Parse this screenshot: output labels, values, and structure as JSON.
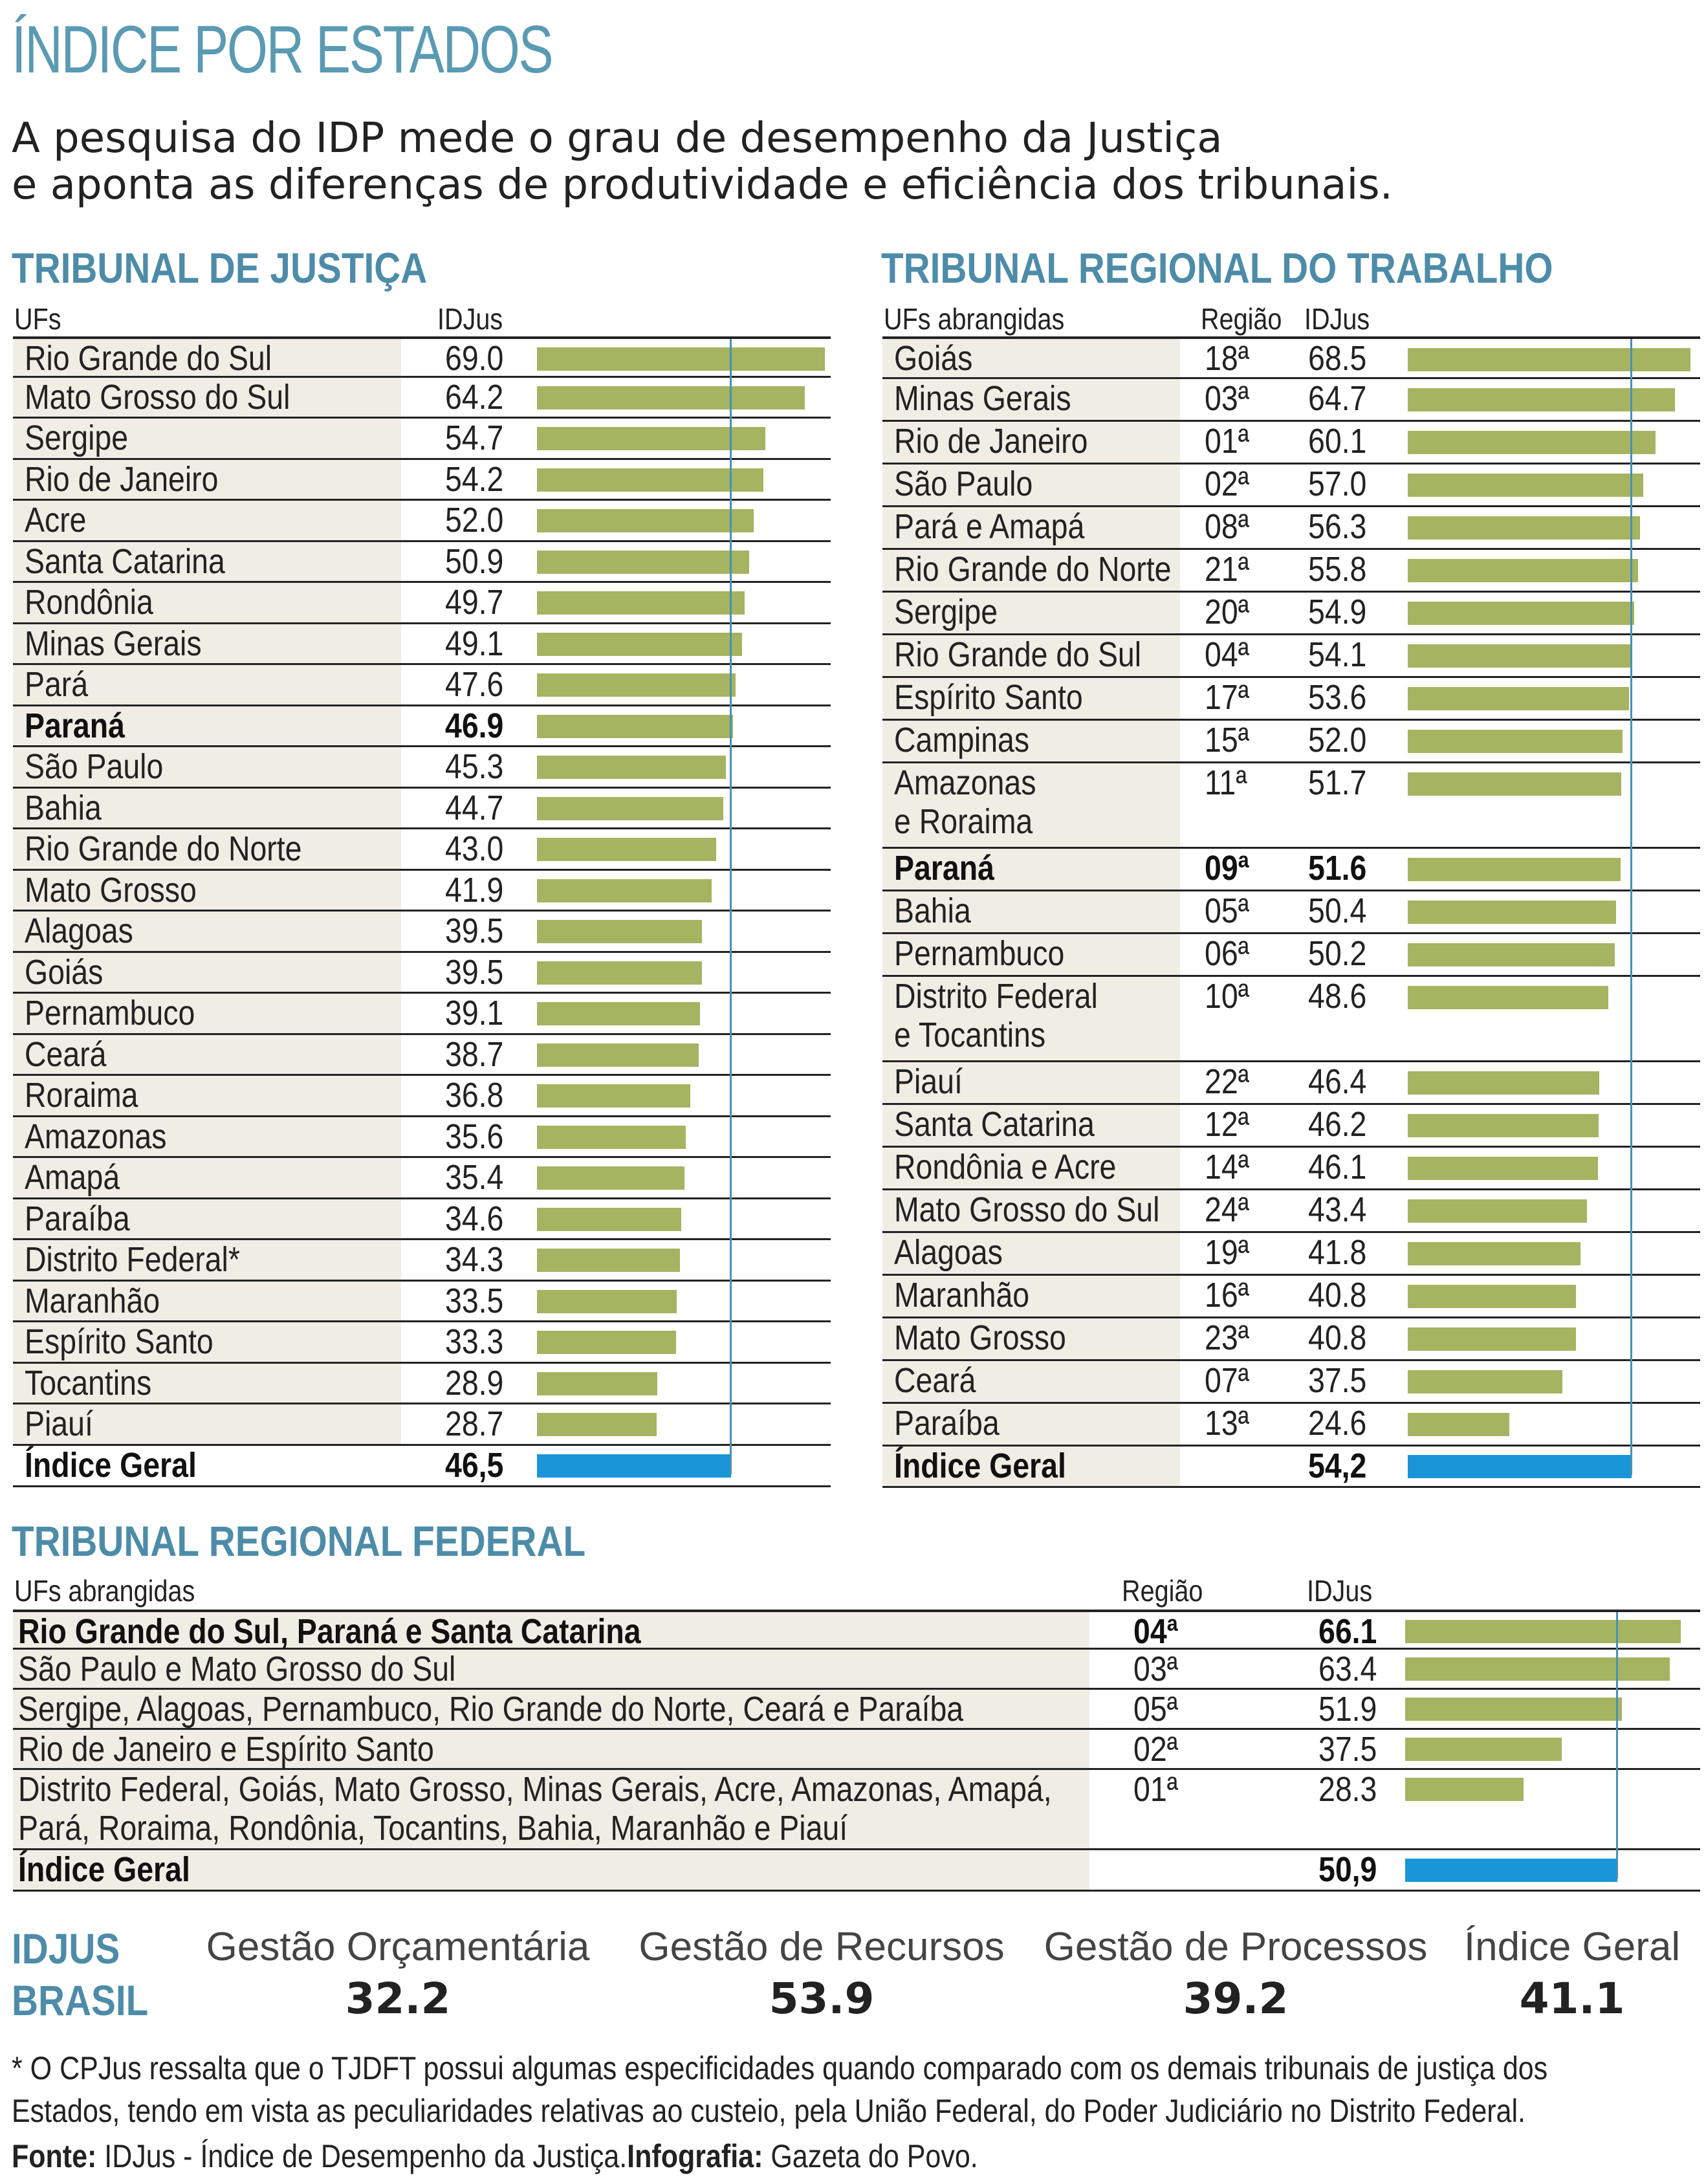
{
  "title": "ÍNDICE POR ESTADOS",
  "intro": [
    "A pesquisa do IDP mede o grau de desempenho da Justiça",
    "e aponta as diferenças de produtividade e eficiência dos tribunais."
  ],
  "chart_data": [
    {
      "type": "bar",
      "title": "TRIBUNAL DE JUSTIÇA",
      "headers": {
        "uf": "UFs",
        "value": "IDJus"
      },
      "categories": [
        "Rio Grande do Sul",
        "Mato Grosso do Sul",
        "Sergipe",
        "Rio de Janeiro",
        "Acre",
        "Santa Catarina",
        "Rondônia",
        "Minas Gerais",
        "Pará",
        "Paraná",
        "São Paulo",
        "Bahia",
        "Rio Grande do Norte",
        "Mato Grosso",
        "Alagoas",
        "Goiás",
        "Pernambuco",
        "Ceará",
        "Roraima",
        "Amazonas",
        "Amapá",
        "Paraíba",
        "Distrito Federal*",
        "Maranhão",
        "Espírito Santo",
        "Tocantins",
        "Piauí"
      ],
      "labels": [
        "69.0",
        "64.2",
        "54.7",
        "54.2",
        "52.0",
        "50.9",
        "49.7",
        "49.1",
        "47.6",
        "46.9",
        "45.3",
        "44.7",
        "43.0",
        "41.9",
        "39.5",
        "39.5",
        "39.1",
        "38.7",
        "36.8",
        "35.6",
        "35.4",
        "34.6",
        "34.3",
        "33.5",
        "33.3",
        "28.9",
        "28.7"
      ],
      "values": [
        69.0,
        64.2,
        54.7,
        54.2,
        52.0,
        50.9,
        49.7,
        49.1,
        47.6,
        46.9,
        45.3,
        44.7,
        43.0,
        41.9,
        39.5,
        39.5,
        39.1,
        38.7,
        36.8,
        35.6,
        35.4,
        34.6,
        34.3,
        33.5,
        33.3,
        28.9,
        28.7
      ],
      "highlight": "Paraná",
      "total": {
        "label": "Índice Geral",
        "value_label": "46,5",
        "value": 46.5
      },
      "bar_color": "#a5b460",
      "total_color": "#1a96d8",
      "ref_line_color": "#4a8fb5"
    },
    {
      "type": "bar",
      "title": "TRIBUNAL REGIONAL DO TRABALHO",
      "headers": {
        "uf": "UFs abrangidas",
        "region": "Região",
        "value": "IDJus"
      },
      "categories": [
        "Goiás",
        "Minas Gerais",
        "Rio de Janeiro",
        "São Paulo",
        "Pará e Amapá",
        "Rio Grande do Norte",
        "Sergipe",
        "Rio Grande do Sul",
        "Espírito Santo",
        "Campinas",
        "Amazonas e Roraima",
        "Paraná",
        "Bahia",
        "Pernambuco",
        "Distrito Federal e Tocantins",
        "Piauí",
        "Santa Catarina",
        "Rondônia e Acre",
        "Mato Grosso do Sul",
        "Alagoas",
        "Maranhão",
        "Mato Grosso",
        "Ceará",
        "Paraíba"
      ],
      "regions": [
        "18ª",
        "03ª",
        "01ª",
        "02ª",
        "08ª",
        "21ª",
        "20ª",
        "04ª",
        "17ª",
        "15ª",
        "11ª",
        "09ª",
        "05ª",
        "06ª",
        "10ª",
        "22ª",
        "12ª",
        "14ª",
        "24ª",
        "19ª",
        "16ª",
        "23ª",
        "07ª",
        "13ª"
      ],
      "labels": [
        "68.5",
        "64.7",
        "60.1",
        "57.0",
        "56.3",
        "55.8",
        "54.9",
        "54.1",
        "53.6",
        "52.0",
        "51.7",
        "51.6",
        "50.4",
        "50.2",
        "48.6",
        "46.4",
        "46.2",
        "46.1",
        "43.4",
        "41.8",
        "40.8",
        "40.8",
        "37.5",
        "24.6"
      ],
      "values": [
        68.5,
        64.7,
        60.1,
        57.0,
        56.3,
        55.8,
        54.9,
        54.1,
        53.6,
        52.0,
        51.7,
        51.6,
        50.4,
        50.2,
        48.6,
        46.4,
        46.2,
        46.1,
        43.4,
        41.8,
        40.8,
        40.8,
        37.5,
        24.6
      ],
      "highlight": "Paraná",
      "total": {
        "label": "Índice Geral",
        "value_label": "54,2",
        "value": 54.2
      }
    },
    {
      "type": "bar",
      "title": "TRIBUNAL REGIONAL FEDERAL",
      "headers": {
        "uf": "UFs abrangidas",
        "region": "Região",
        "value": "IDJus"
      },
      "categories": [
        "Rio Grande do Sul, Paraná e Santa Catarina",
        "São Paulo e Mato Grosso do Sul",
        "Sergipe, Alagoas, Pernambuco, Rio Grande do Norte, Ceará e Paraíba",
        "Rio de Janeiro e Espírito Santo",
        "Distrito Federal, Goiás, Mato Grosso, Minas Gerais, Acre, Amazonas, Amapá, Pará, Roraima, Rondônia, Tocantins, Bahia, Maranhão e Piauí"
      ],
      "category_lines": [
        [
          "Rio Grande do Sul, Paraná e Santa Catarina"
        ],
        [
          "São Paulo e Mato Grosso do Sul"
        ],
        [
          "Sergipe, Alagoas, Pernambuco, Rio Grande do Norte, Ceará e Paraíba"
        ],
        [
          "Rio de Janeiro e Espírito Santo"
        ],
        [
          "Distrito Federal, Goiás, Mato Grosso, Minas Gerais, Acre, Amazonas, Amapá,",
          "Pará, Roraima, Rondônia, Tocantins, Bahia, Maranhão e Piauí"
        ]
      ],
      "regions": [
        "04ª",
        "03ª",
        "05ª",
        "02ª",
        "01ª"
      ],
      "labels": [
        "66.1",
        "63.4",
        "51.9",
        "37.5",
        "28.3"
      ],
      "values": [
        66.1,
        63.4,
        51.9,
        37.5,
        28.3
      ],
      "highlight": "Rio Grande do Sul, Paraná e Santa Catarina",
      "total": {
        "label": "Índice Geral",
        "value_label": "50,9",
        "value": 50.9
      }
    }
  ],
  "trt_split_names": {
    "Amazonas e Roraima": [
      "Amazonas",
      "e Roraima"
    ],
    "Distrito Federal e Tocantins": [
      "Distrito Federal",
      "e Tocantins"
    ]
  },
  "summary": {
    "brand_line1": "IDJUS",
    "brand_line2": "BRASIL",
    "items": [
      {
        "label": "Gestão Orçamentária",
        "value": "32.2"
      },
      {
        "label": "Gestão de Recursos",
        "value": "53.9"
      },
      {
        "label": "Gestão de Processos",
        "value": "39.2"
      },
      {
        "label": "Índice Geral",
        "value": "41.1"
      }
    ]
  },
  "footnote": {
    "line1": "* O CPJus ressalta que o TJDFT possui algumas especificidades quando comparado com os demais tribunais de justiça dos",
    "line2": "Estados, tendo em vista as peculiaridades relativas ao custeio, pela União Federal, do Poder Judiciário no Distrito Federal.",
    "source_label": "Fonte:",
    "source_text": "IDJus - Índice de Desempenho da Justiça.",
    "credit_label": "Infografia:",
    "credit_text": "Gazeta do Povo."
  }
}
